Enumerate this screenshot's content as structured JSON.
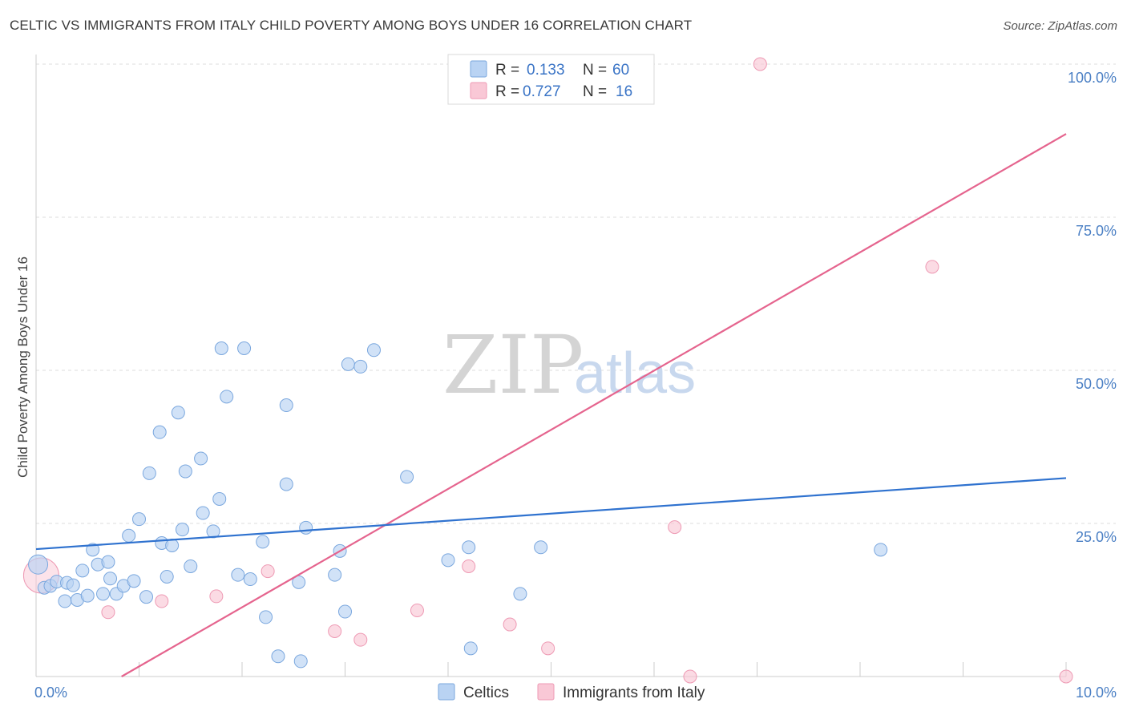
{
  "title": "CELTIC VS IMMIGRANTS FROM ITALY CHILD POVERTY AMONG BOYS UNDER 16 CORRELATION CHART",
  "source": "Source: ZipAtlas.com",
  "watermark": {
    "zip": "ZIP",
    "atlas": "atlas"
  },
  "legend": {
    "rows": [
      {
        "r_label": "R =",
        "r_value": "0.133",
        "n_label": "N =",
        "n_value": "60"
      },
      {
        "r_label": "R =",
        "r_value": "0.727",
        "n_label": "N =",
        "n_value": "16"
      }
    ]
  },
  "colors": {
    "celtics_fill": "#b9d3f3",
    "celtics_stroke": "#7aa7de",
    "celtics_line": "#2f72cf",
    "italy_fill": "#f9c8d6",
    "italy_stroke": "#ee9ab4",
    "italy_line": "#e5648e",
    "grid": "#dddddd",
    "tick_text": "#4a7fc4"
  },
  "chart_data": {
    "type": "scatter",
    "title": "CELTIC VS IMMIGRANTS FROM ITALY CHILD POVERTY AMONG BOYS UNDER 16 CORRELATION CHART",
    "xlabel": "",
    "ylabel": "Child Poverty Among Boys Under 16",
    "xlim": [
      0,
      10
    ],
    "ylim": [
      0,
      100
    ],
    "x_tick_labels": [
      {
        "value": 0,
        "label": "0.0%"
      },
      {
        "value": 10,
        "label": "10.0%"
      }
    ],
    "y_tick_labels": [
      {
        "value": 25,
        "label": "25.0%"
      },
      {
        "value": 50,
        "label": "50.0%"
      },
      {
        "value": 75,
        "label": "75.0%"
      },
      {
        "value": 100,
        "label": "100.0%"
      }
    ],
    "grid": true,
    "legend_position": "top-center",
    "series": [
      {
        "name": "Celtics",
        "r": 0.133,
        "n": 60,
        "trend": {
          "x": [
            0,
            10
          ],
          "y": [
            20.8,
            32.4
          ]
        },
        "points": [
          [
            0.02,
            18.3
          ],
          [
            0.08,
            14.5
          ],
          [
            0.14,
            14.8
          ],
          [
            0.2,
            15.5
          ],
          [
            0.3,
            15.3
          ],
          [
            0.28,
            12.3
          ],
          [
            0.36,
            14.9
          ],
          [
            0.4,
            12.5
          ],
          [
            0.45,
            17.3
          ],
          [
            0.5,
            13.2
          ],
          [
            0.55,
            20.7
          ],
          [
            0.6,
            18.3
          ],
          [
            0.65,
            13.5
          ],
          [
            0.7,
            18.7
          ],
          [
            0.72,
            16
          ],
          [
            0.78,
            13.5
          ],
          [
            0.85,
            14.8
          ],
          [
            0.9,
            23
          ],
          [
            0.95,
            15.6
          ],
          [
            1.0,
            25.7
          ],
          [
            1.07,
            13
          ],
          [
            1.1,
            33.2
          ],
          [
            1.2,
            39.9
          ],
          [
            1.22,
            21.8
          ],
          [
            1.27,
            16.3
          ],
          [
            1.32,
            21.4
          ],
          [
            1.38,
            43.1
          ],
          [
            1.42,
            24
          ],
          [
            1.45,
            33.5
          ],
          [
            1.5,
            18
          ],
          [
            1.6,
            35.6
          ],
          [
            1.62,
            26.7
          ],
          [
            1.72,
            23.7
          ],
          [
            1.78,
            29
          ],
          [
            1.8,
            53.6
          ],
          [
            1.85,
            45.7
          ],
          [
            1.96,
            16.6
          ],
          [
            2.02,
            53.6
          ],
          [
            2.08,
            15.9
          ],
          [
            2.2,
            22
          ],
          [
            2.23,
            9.7
          ],
          [
            2.35,
            3.3
          ],
          [
            2.43,
            44.3
          ],
          [
            2.43,
            31.4
          ],
          [
            2.55,
            15.4
          ],
          [
            2.57,
            2.5
          ],
          [
            2.62,
            24.3
          ],
          [
            2.9,
            16.6
          ],
          [
            2.95,
            20.5
          ],
          [
            3.0,
            10.6
          ],
          [
            3.03,
            51
          ],
          [
            3.15,
            50.6
          ],
          [
            3.28,
            53.3
          ],
          [
            3.6,
            32.6
          ],
          [
            4.0,
            19
          ],
          [
            4.2,
            21.1
          ],
          [
            4.22,
            4.6
          ],
          [
            4.7,
            13.5
          ],
          [
            4.9,
            21.1
          ],
          [
            8.2,
            20.7
          ]
        ]
      },
      {
        "name": "Immigrants from Italy",
        "r": 0.727,
        "n": 16,
        "trend": {
          "x": [
            0.83,
            10
          ],
          "y": [
            0,
            88.6
          ]
        },
        "points": [
          [
            0.05,
            16.5
          ],
          [
            0.7,
            10.5
          ],
          [
            1.22,
            12.3
          ],
          [
            1.75,
            13.1
          ],
          [
            2.25,
            17.2
          ],
          [
            2.9,
            7.4
          ],
          [
            3.15,
            6
          ],
          [
            3.7,
            10.8
          ],
          [
            4.2,
            18
          ],
          [
            4.6,
            8.5
          ],
          [
            4.97,
            4.6
          ],
          [
            6.2,
            24.4
          ],
          [
            8.7,
            66.9
          ],
          [
            6.35,
            0
          ],
          [
            10,
            0
          ],
          [
            7.03,
            100
          ]
        ]
      }
    ]
  },
  "bottom_legend": {
    "items": [
      {
        "label": "Celtics"
      },
      {
        "label": "Immigrants from Italy"
      }
    ]
  }
}
